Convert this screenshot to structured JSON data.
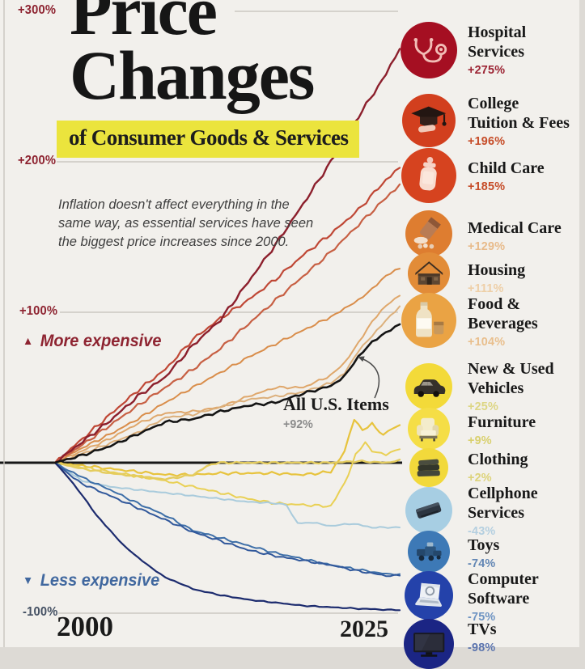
{
  "title": {
    "line1": "Price",
    "line2": "Changes",
    "subtitle": "of Consumer Goods & Services"
  },
  "description": "Inflation doesn't affect everything in the same way, as essential services have seen the biggest price increases since 2000.",
  "direction_labels": {
    "more": {
      "marker": "▲",
      "text": "More expensive",
      "color": "#8e2431"
    },
    "less": {
      "marker": "▼",
      "text": "Less expensive",
      "color": "#41689f"
    }
  },
  "axis": {
    "x_start": "2000",
    "x_end": "2025",
    "y_ticks": [
      {
        "label": "+300%",
        "value": 300,
        "color": "#8e2431"
      },
      {
        "label": "+200%",
        "value": 200,
        "color": "#8e2431"
      },
      {
        "label": "+100%",
        "value": 100,
        "color": "#8e2431"
      },
      {
        "label": "-100%",
        "value": -100,
        "color": "#445063"
      }
    ]
  },
  "annotation": {
    "label": "All U.S. Items",
    "value": "+92%"
  },
  "legend": [
    {
      "id": "hospital-services",
      "lines": [
        "Hospital",
        "Services"
      ],
      "value": "+275%",
      "circle_color": "#a50f22",
      "value_color": "#9c2333",
      "icon": "stethoscope-icon"
    },
    {
      "id": "college-tuition",
      "lines": [
        "College",
        "Tuition & Fees"
      ],
      "value": "+196%",
      "circle_color": "#d23f1e",
      "value_color": "#c64c28",
      "icon": "graduation-cap-icon"
    },
    {
      "id": "child-care",
      "lines": [
        "Child Care"
      ],
      "value": "+185%",
      "circle_color": "#d6431f",
      "value_color": "#c64c28",
      "icon": "baby-bottle-icon"
    },
    {
      "id": "medical-care",
      "lines": [
        "Medical Care"
      ],
      "value": "+129%",
      "circle_color": "#de7d30",
      "value_color": "#e8bb8b",
      "icon": "pills-icon"
    },
    {
      "id": "housing",
      "lines": [
        "Housing"
      ],
      "value": "+111%",
      "circle_color": "#e28c38",
      "value_color": "#eecfa7",
      "icon": "house-icon"
    },
    {
      "id": "food-beverages",
      "lines": [
        "Food &",
        "Beverages"
      ],
      "value": "+104%",
      "circle_color": "#eaa344",
      "value_color": "#e9bf8d",
      "icon": "milk-bottle-icon"
    },
    {
      "id": "new-used-vehicles",
      "lines": [
        "New & Used",
        "Vehicles"
      ],
      "value": "+25%",
      "circle_color": "#f3da39",
      "value_color": "#ddd684",
      "icon": "car-icon"
    },
    {
      "id": "furniture",
      "lines": [
        "Furniture"
      ],
      "value": "+9%",
      "circle_color": "#f5de46",
      "value_color": "#d9d06e",
      "icon": "armchair-icon"
    },
    {
      "id": "clothing",
      "lines": [
        "Clothing"
      ],
      "value": "+2%",
      "circle_color": "#f2d93b",
      "value_color": "#ddd37a",
      "icon": "clothing-icon"
    },
    {
      "id": "cellphone-services",
      "lines": [
        "Cellphone",
        "Services"
      ],
      "value": "-43%",
      "circle_color": "#a7cee3",
      "value_color": "#b4cfe0",
      "icon": "cellphone-icon"
    },
    {
      "id": "toys",
      "lines": [
        "Toys"
      ],
      "value": "-74%",
      "circle_color": "#3d79b6",
      "value_color": "#6286b4",
      "icon": "toy-icon"
    },
    {
      "id": "computer-software",
      "lines": [
        "Computer",
        "Software"
      ],
      "value": "-75%",
      "circle_color": "#2442aa",
      "value_color": "#6d93c2",
      "icon": "laptop-icon"
    },
    {
      "id": "tvs",
      "lines": [
        "TVs"
      ],
      "value": "-98%",
      "circle_color": "#1b2584",
      "value_color": "#5b74ae",
      "icon": "tv-icon"
    }
  ],
  "chart_data": {
    "type": "line",
    "title": "Price Changes of Consumer Goods & Services",
    "x_range": [
      2000,
      2025
    ],
    "y_range": [
      -100,
      300
    ],
    "y_unit": "percent change since 2000",
    "gridlines": [
      300,
      200,
      100,
      -100
    ],
    "zero_line": 0,
    "series": [
      {
        "id": "hospital-services",
        "name": "Hospital Services",
        "final": 275,
        "color": "#8c1f2c",
        "points": [
          [
            2000,
            0
          ],
          [
            2002,
            14
          ],
          [
            2004,
            28
          ],
          [
            2006,
            44
          ],
          [
            2008,
            57
          ],
          [
            2010,
            78
          ],
          [
            2012,
            95
          ],
          [
            2014,
            120
          ],
          [
            2016,
            145
          ],
          [
            2018,
            172
          ],
          [
            2020,
            200
          ],
          [
            2022,
            230
          ],
          [
            2024,
            258
          ],
          [
            2025,
            275
          ]
        ]
      },
      {
        "id": "college-tuition",
        "name": "College Tuition & Fees",
        "final": 196,
        "color": "#bf4735",
        "points": [
          [
            2000,
            0
          ],
          [
            2002,
            16
          ],
          [
            2004,
            32
          ],
          [
            2006,
            48
          ],
          [
            2008,
            62
          ],
          [
            2010,
            82
          ],
          [
            2012,
            96
          ],
          [
            2014,
            108
          ],
          [
            2016,
            122
          ],
          [
            2018,
            138
          ],
          [
            2020,
            152
          ],
          [
            2022,
            168
          ],
          [
            2024,
            188
          ],
          [
            2025,
            196
          ]
        ]
      },
      {
        "id": "child-care",
        "name": "Child Care",
        "final": 185,
        "color": "#c75f43",
        "points": [
          [
            2000,
            0
          ],
          [
            2002,
            12
          ],
          [
            2004,
            25
          ],
          [
            2006,
            38
          ],
          [
            2008,
            50
          ],
          [
            2010,
            62
          ],
          [
            2012,
            76
          ],
          [
            2014,
            92
          ],
          [
            2016,
            108
          ],
          [
            2018,
            124
          ],
          [
            2020,
            140
          ],
          [
            2022,
            158
          ],
          [
            2024,
            176
          ],
          [
            2025,
            185
          ]
        ]
      },
      {
        "id": "medical-care",
        "name": "Medical Care",
        "final": 129,
        "color": "#d98d4a",
        "points": [
          [
            2000,
            0
          ],
          [
            2002,
            10
          ],
          [
            2004,
            19
          ],
          [
            2006,
            29
          ],
          [
            2008,
            40
          ],
          [
            2010,
            50
          ],
          [
            2012,
            60
          ],
          [
            2014,
            70
          ],
          [
            2016,
            79
          ],
          [
            2018,
            88
          ],
          [
            2020,
            97
          ],
          [
            2021,
            102
          ],
          [
            2022,
            108
          ],
          [
            2023,
            116
          ],
          [
            2024,
            124
          ],
          [
            2025,
            129
          ]
        ]
      },
      {
        "id": "housing",
        "name": "Housing",
        "final": 111,
        "color": "#dfa76b",
        "points": [
          [
            2000,
            0
          ],
          [
            2002,
            8
          ],
          [
            2004,
            16
          ],
          [
            2006,
            26
          ],
          [
            2008,
            33
          ],
          [
            2010,
            34
          ],
          [
            2012,
            37
          ],
          [
            2014,
            44
          ],
          [
            2016,
            50
          ],
          [
            2018,
            50
          ],
          [
            2020,
            58
          ],
          [
            2021,
            66
          ],
          [
            2022,
            80
          ],
          [
            2023,
            94
          ],
          [
            2024,
            104
          ],
          [
            2025,
            111
          ]
        ]
      },
      {
        "id": "food-beverages",
        "name": "Food & Beverages",
        "final": 104,
        "color": "#dcb07c",
        "points": [
          [
            2000,
            0
          ],
          [
            2002,
            6
          ],
          [
            2004,
            13
          ],
          [
            2006,
            20
          ],
          [
            2008,
            30
          ],
          [
            2010,
            32
          ],
          [
            2012,
            37
          ],
          [
            2014,
            42
          ],
          [
            2016,
            44
          ],
          [
            2018,
            47
          ],
          [
            2020,
            53
          ],
          [
            2021,
            60
          ],
          [
            2022,
            74
          ],
          [
            2023,
            84
          ],
          [
            2024,
            95
          ],
          [
            2025,
            104
          ]
        ]
      },
      {
        "id": "all-us-items",
        "name": "All U.S. Items",
        "final": 92,
        "color": "#141414",
        "points": [
          [
            2000,
            0
          ],
          [
            2002,
            5
          ],
          [
            2004,
            11
          ],
          [
            2006,
            19
          ],
          [
            2008,
            27
          ],
          [
            2010,
            29
          ],
          [
            2012,
            34
          ],
          [
            2014,
            38
          ],
          [
            2016,
            40
          ],
          [
            2018,
            46
          ],
          [
            2020,
            51
          ],
          [
            2021,
            58
          ],
          [
            2022,
            70
          ],
          [
            2023,
            80
          ],
          [
            2024,
            87
          ],
          [
            2025,
            92
          ]
        ]
      },
      {
        "id": "new-used-vehicles",
        "name": "New & Used Vehicles",
        "final": 25,
        "color": "#e7c33d",
        "points": [
          [
            2000,
            0
          ],
          [
            2002,
            -2
          ],
          [
            2004,
            -4
          ],
          [
            2006,
            -6
          ],
          [
            2008,
            -8
          ],
          [
            2010,
            -8
          ],
          [
            2012,
            -7
          ],
          [
            2014,
            -7
          ],
          [
            2016,
            -7
          ],
          [
            2018,
            -8
          ],
          [
            2020,
            -6
          ],
          [
            2021,
            8
          ],
          [
            2021.7,
            29
          ],
          [
            2022.3,
            21
          ],
          [
            2023,
            26
          ],
          [
            2023.8,
            18
          ],
          [
            2024.5,
            23
          ],
          [
            2025,
            25
          ]
        ]
      },
      {
        "id": "furniture",
        "name": "Furniture",
        "final": 9,
        "color": "#e9d054",
        "points": [
          [
            2000,
            0
          ],
          [
            2002,
            -3
          ],
          [
            2004,
            -6
          ],
          [
            2006,
            -9
          ],
          [
            2008,
            -12
          ],
          [
            2010,
            -16
          ],
          [
            2012,
            -20
          ],
          [
            2014,
            -24
          ],
          [
            2016,
            -27
          ],
          [
            2018,
            -28
          ],
          [
            2020,
            -29
          ],
          [
            2021,
            -14
          ],
          [
            2021.8,
            5
          ],
          [
            2022.5,
            13
          ],
          [
            2023,
            8
          ],
          [
            2024,
            5
          ],
          [
            2025,
            9
          ]
        ]
      },
      {
        "id": "clothing",
        "name": "Clothing",
        "final": 2,
        "color": "#e4cc5e",
        "points": [
          [
            2000,
            0
          ],
          [
            2002,
            -4
          ],
          [
            2004,
            -7
          ],
          [
            2006,
            -9
          ],
          [
            2008,
            -11
          ],
          [
            2010,
            -8
          ],
          [
            2011,
            -2
          ],
          [
            2012,
            0
          ],
          [
            2014,
            0
          ],
          [
            2016,
            0
          ],
          [
            2018,
            0
          ],
          [
            2020,
            0
          ],
          [
            2022,
            1
          ],
          [
            2024,
            0
          ],
          [
            2025,
            2
          ]
        ]
      },
      {
        "id": "cellphone-services",
        "name": "Cellphone Services",
        "final": -43,
        "color": "#a9cbdc",
        "points": [
          [
            2000,
            0
          ],
          [
            2001,
            -6
          ],
          [
            2002,
            -12
          ],
          [
            2004,
            -16
          ],
          [
            2006,
            -18
          ],
          [
            2008,
            -20
          ],
          [
            2010,
            -22
          ],
          [
            2012,
            -24
          ],
          [
            2014,
            -26
          ],
          [
            2016,
            -27
          ],
          [
            2016.8,
            -28
          ],
          [
            2017.2,
            -35
          ],
          [
            2017.6,
            -40
          ],
          [
            2019,
            -40
          ],
          [
            2020,
            -42
          ],
          [
            2021,
            -41
          ],
          [
            2022,
            -41
          ],
          [
            2023,
            -43
          ],
          [
            2025,
            -43
          ]
        ]
      },
      {
        "id": "toys",
        "name": "Toys",
        "final": -74,
        "color": "#3e6fa8",
        "points": [
          [
            2000,
            0
          ],
          [
            2001,
            -5
          ],
          [
            2002,
            -10
          ],
          [
            2004,
            -18
          ],
          [
            2006,
            -27
          ],
          [
            2008,
            -35
          ],
          [
            2010,
            -45
          ],
          [
            2012,
            -50
          ],
          [
            2014,
            -55
          ],
          [
            2016,
            -60
          ],
          [
            2018,
            -64
          ],
          [
            2020,
            -68
          ],
          [
            2022,
            -71
          ],
          [
            2024,
            -74
          ],
          [
            2025,
            -74
          ]
        ]
      },
      {
        "id": "computer-software",
        "name": "Computer Software",
        "final": -75,
        "color": "#31589b",
        "points": [
          [
            2000,
            0
          ],
          [
            2001,
            -8
          ],
          [
            2002,
            -14
          ],
          [
            2004,
            -22
          ],
          [
            2006,
            -30
          ],
          [
            2008,
            -38
          ],
          [
            2010,
            -46
          ],
          [
            2012,
            -52
          ],
          [
            2014,
            -58
          ],
          [
            2016,
            -62
          ],
          [
            2018,
            -65
          ],
          [
            2020,
            -68
          ],
          [
            2022,
            -72
          ],
          [
            2024,
            -75
          ],
          [
            2025,
            -75
          ]
        ]
      },
      {
        "id": "tvs",
        "name": "TVs",
        "final": -98,
        "color": "#1c2b6e",
        "points": [
          [
            2000,
            0
          ],
          [
            2001,
            -10
          ],
          [
            2002,
            -22
          ],
          [
            2003,
            -35
          ],
          [
            2004,
            -45
          ],
          [
            2005,
            -55
          ],
          [
            2006,
            -63
          ],
          [
            2007,
            -70
          ],
          [
            2008,
            -76
          ],
          [
            2009,
            -80
          ],
          [
            2010,
            -84
          ],
          [
            2012,
            -88
          ],
          [
            2014,
            -91
          ],
          [
            2016,
            -93
          ],
          [
            2018,
            -95
          ],
          [
            2020,
            -96
          ],
          [
            2022,
            -97
          ],
          [
            2025,
            -98
          ]
        ]
      }
    ]
  }
}
